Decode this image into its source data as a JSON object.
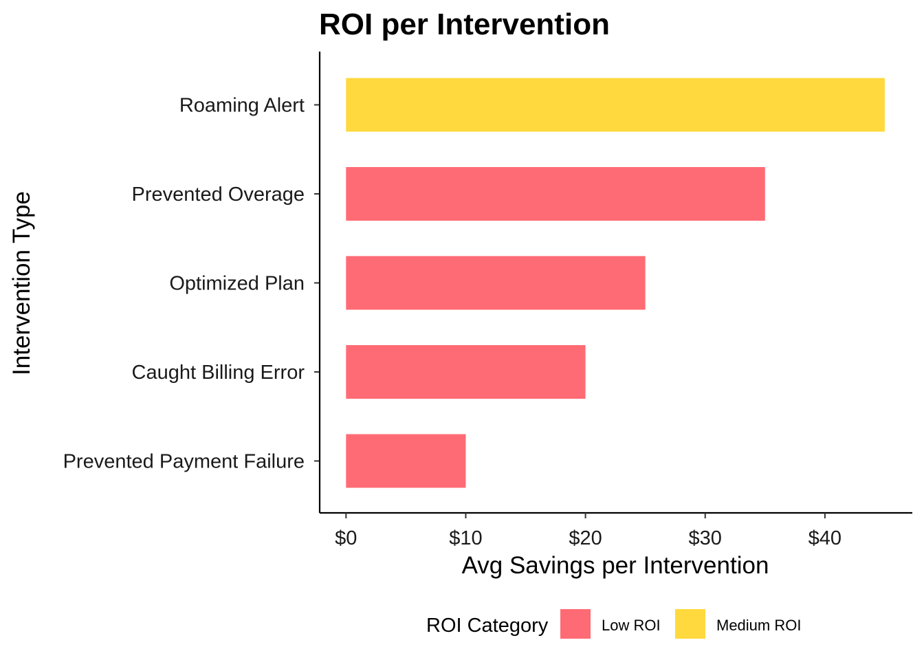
{
  "chart_data": {
    "type": "bar",
    "orientation": "horizontal",
    "title": "ROI per Intervention",
    "xlabel": "Avg Savings per Intervention",
    "ylabel": "Intervention Type",
    "xlim": [
      -2.2,
      47.3
    ],
    "x_ticks": [
      0,
      10,
      20,
      30,
      40
    ],
    "x_tick_labels": [
      "$0",
      "$10",
      "$20",
      "$30",
      "$40"
    ],
    "categories": [
      "Roaming Alert",
      "Prevented Overage",
      "Optimized Plan",
      "Caught Billing Error",
      "Prevented Payment Failure"
    ],
    "values": [
      45,
      35,
      25,
      20,
      10
    ],
    "roi_category": [
      "Medium ROI",
      "Low ROI",
      "Low ROI",
      "Low ROI",
      "Low ROI"
    ],
    "grid": false,
    "legend": {
      "title": "ROI Category",
      "position": "bottom",
      "entries": [
        {
          "label": "Low ROI",
          "color": "#FF6B74"
        },
        {
          "label": "Medium ROI",
          "color": "#FFD93D"
        }
      ]
    }
  }
}
